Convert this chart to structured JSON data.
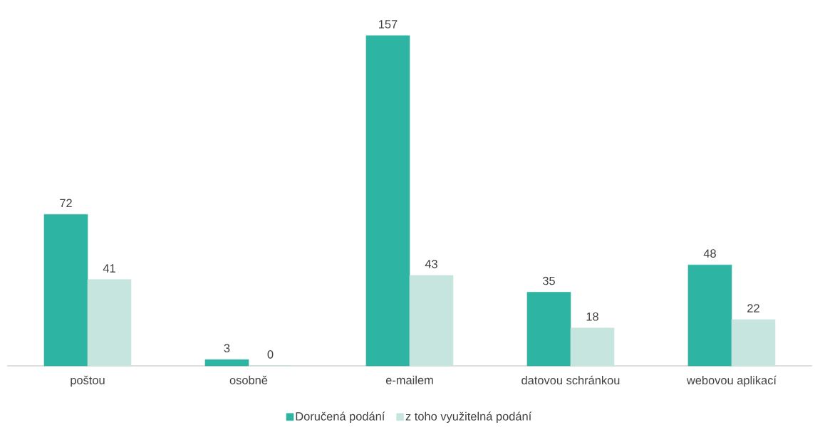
{
  "chart_data": {
    "type": "bar",
    "categories": [
      "poštou",
      "osobně",
      "e-mailem",
      "datovou schránkou",
      "webovou aplikací"
    ],
    "series": [
      {
        "name": "Doručená podání",
        "color": "#2eb4a2",
        "values": [
          72,
          3,
          157,
          35,
          48
        ]
      },
      {
        "name": "z toho využitelná podání",
        "color": "#c5e5de",
        "values": [
          41,
          0,
          43,
          18,
          22
        ]
      }
    ],
    "tick_labels": "x",
    "data_labels": true,
    "legend": "bottom"
  }
}
